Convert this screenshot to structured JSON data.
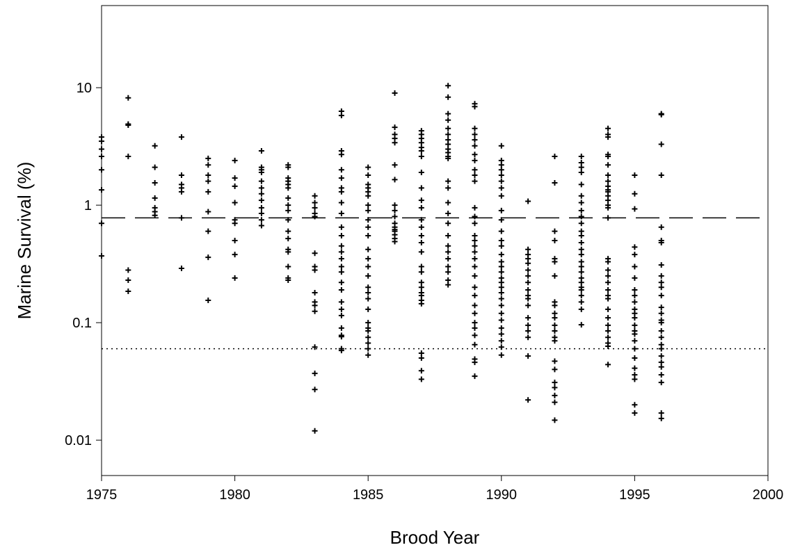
{
  "chart_data": {
    "type": "scatter",
    "x_label": "Brood Year",
    "y_label": "Marine Survival (%)",
    "xlim": [
      1975,
      2000
    ],
    "xticks": [
      1975,
      1980,
      1985,
      1990,
      1995,
      2000
    ],
    "ylim": [
      0.005,
      50
    ],
    "yticks": [
      0.01,
      0.1,
      1,
      10
    ],
    "ylog": true,
    "color": "#000000",
    "reference_lines": [
      {
        "value": 0.78,
        "style": "dashed"
      },
      {
        "value": 0.06,
        "style": "dotted"
      }
    ],
    "groups": [
      {
        "x": 1975,
        "values": [
          3.8,
          3.5,
          3.0,
          2.6,
          2.0,
          1.35,
          0.7,
          0.37
        ]
      },
      {
        "x": 1976,
        "values": [
          8.2,
          4.9,
          4.8,
          2.6,
          0.28,
          0.23,
          0.185
        ]
      },
      {
        "x": 1977,
        "values": [
          3.2,
          2.1,
          1.55,
          1.15,
          0.95,
          0.88,
          0.82
        ]
      },
      {
        "x": 1978,
        "values": [
          3.8,
          1.8,
          1.5,
          1.4,
          1.3,
          0.78,
          0.29
        ]
      },
      {
        "x": 1979,
        "values": [
          2.5,
          2.2,
          1.8,
          1.6,
          1.3,
          0.88,
          0.6,
          0.36,
          0.155
        ]
      },
      {
        "x": 1980,
        "values": [
          2.4,
          1.7,
          1.45,
          1.05,
          0.75,
          0.7,
          0.5,
          0.38,
          0.24
        ]
      },
      {
        "x": 1981,
        "values": [
          2.9,
          2.1,
          2.0,
          1.9,
          1.6,
          1.4,
          1.25,
          1.1,
          0.95,
          0.85,
          0.75,
          0.67
        ]
      },
      {
        "x": 1982,
        "values": [
          2.2,
          2.1,
          1.7,
          1.6,
          1.5,
          1.4,
          1.15,
          1.0,
          0.9,
          0.75,
          0.6,
          0.52,
          0.42,
          0.4,
          0.3,
          0.24,
          0.23
        ]
      },
      {
        "x": 1983,
        "values": [
          1.2,
          1.05,
          0.95,
          0.85,
          0.8,
          0.39,
          0.3,
          0.28,
          0.18,
          0.15,
          0.14,
          0.125,
          0.062,
          0.037,
          0.027,
          0.012
        ]
      },
      {
        "x": 1984,
        "values": [
          6.3,
          5.8,
          2.9,
          2.7,
          2.0,
          1.7,
          1.4,
          1.3,
          1.05,
          0.85,
          0.65,
          0.55,
          0.45,
          0.4,
          0.35,
          0.3,
          0.27,
          0.22,
          0.19,
          0.15,
          0.13,
          0.115,
          0.09,
          0.078,
          0.076,
          0.06,
          0.058
        ]
      },
      {
        "x": 1985,
        "values": [
          2.1,
          1.8,
          1.5,
          1.4,
          1.3,
          1.2,
          1.0,
          0.9,
          0.75,
          0.65,
          0.55,
          0.42,
          0.35,
          0.3,
          0.25,
          0.2,
          0.18,
          0.16,
          0.13,
          0.1,
          0.09,
          0.085,
          0.075,
          0.067,
          0.06,
          0.053
        ]
      },
      {
        "x": 1986,
        "values": [
          9.0,
          4.6,
          4.0,
          3.7,
          3.4,
          2.2,
          1.65,
          1.0,
          0.9,
          0.8,
          0.7,
          0.65,
          0.62,
          0.6,
          0.56,
          0.52,
          0.49
        ]
      },
      {
        "x": 1987,
        "values": [
          4.3,
          4.0,
          3.7,
          3.4,
          3.1,
          2.9,
          2.6,
          1.9,
          1.4,
          1.1,
          0.95,
          0.75,
          0.65,
          0.55,
          0.48,
          0.4,
          0.3,
          0.27,
          0.22,
          0.2,
          0.18,
          0.17,
          0.155,
          0.145,
          0.055,
          0.05,
          0.039,
          0.033
        ]
      },
      {
        "x": 1988,
        "values": [
          10.4,
          8.3,
          6.0,
          5.3,
          4.5,
          4.0,
          3.6,
          3.3,
          3.0,
          2.8,
          2.6,
          2.5,
          1.6,
          1.4,
          1.05,
          0.85,
          0.7,
          0.55,
          0.45,
          0.4,
          0.35,
          0.3,
          0.27,
          0.23,
          0.21
        ]
      },
      {
        "x": 1989,
        "values": [
          7.3,
          6.9,
          4.5,
          4.0,
          3.6,
          3.2,
          2.7,
          2.4,
          2.0,
          1.8,
          1.6,
          0.95,
          0.8,
          0.7,
          0.55,
          0.5,
          0.45,
          0.4,
          0.35,
          0.3,
          0.25,
          0.2,
          0.17,
          0.14,
          0.12,
          0.1,
          0.09,
          0.078,
          0.065,
          0.049,
          0.046,
          0.035
        ]
      },
      {
        "x": 1990,
        "values": [
          3.2,
          2.4,
          2.2,
          2.0,
          1.8,
          1.6,
          1.4,
          1.2,
          0.9,
          0.75,
          0.6,
          0.5,
          0.45,
          0.38,
          0.33,
          0.3,
          0.27,
          0.24,
          0.22,
          0.2,
          0.18,
          0.16,
          0.14,
          0.12,
          0.105,
          0.09,
          0.08,
          0.07,
          0.062,
          0.053
        ]
      },
      {
        "x": 1991,
        "values": [
          1.08,
          0.42,
          0.38,
          0.35,
          0.32,
          0.28,
          0.25,
          0.22,
          0.19,
          0.17,
          0.16,
          0.14,
          0.11,
          0.095,
          0.085,
          0.075,
          0.052,
          0.022
        ]
      },
      {
        "x": 1992,
        "values": [
          2.6,
          1.55,
          0.6,
          0.5,
          0.35,
          0.33,
          0.25,
          0.15,
          0.14,
          0.12,
          0.11,
          0.095,
          0.085,
          0.075,
          0.07,
          0.047,
          0.04,
          0.031,
          0.028,
          0.024,
          0.021,
          0.0148
        ]
      },
      {
        "x": 1993,
        "values": [
          2.6,
          2.3,
          2.1,
          1.9,
          1.5,
          1.2,
          1.05,
          0.9,
          0.8,
          0.7,
          0.6,
          0.55,
          0.48,
          0.42,
          0.38,
          0.33,
          0.3,
          0.27,
          0.24,
          0.22,
          0.2,
          0.19,
          0.17,
          0.15,
          0.13,
          0.096
        ]
      },
      {
        "x": 1994,
        "values": [
          4.5,
          4.0,
          3.8,
          2.7,
          2.6,
          2.2,
          1.8,
          1.6,
          1.45,
          1.35,
          1.3,
          1.2,
          1.1,
          1.0,
          0.95,
          0.78,
          0.35,
          0.33,
          0.28,
          0.25,
          0.22,
          0.19,
          0.17,
          0.16,
          0.13,
          0.11,
          0.095,
          0.085,
          0.075,
          0.067,
          0.063,
          0.044
        ]
      },
      {
        "x": 1995,
        "values": [
          1.8,
          1.25,
          0.93,
          0.44,
          0.38,
          0.3,
          0.24,
          0.19,
          0.17,
          0.15,
          0.13,
          0.12,
          0.11,
          0.095,
          0.085,
          0.08,
          0.07,
          0.06,
          0.05,
          0.041,
          0.036,
          0.033,
          0.02,
          0.017
        ]
      },
      {
        "x": 1996,
        "values": [
          6.0,
          5.9,
          3.3,
          1.8,
          0.65,
          0.5,
          0.48,
          0.31,
          0.25,
          0.22,
          0.2,
          0.17,
          0.135,
          0.12,
          0.105,
          0.1,
          0.085,
          0.075,
          0.065,
          0.06,
          0.052,
          0.046,
          0.042,
          0.036,
          0.031,
          0.017,
          0.0153
        ]
      }
    ]
  }
}
